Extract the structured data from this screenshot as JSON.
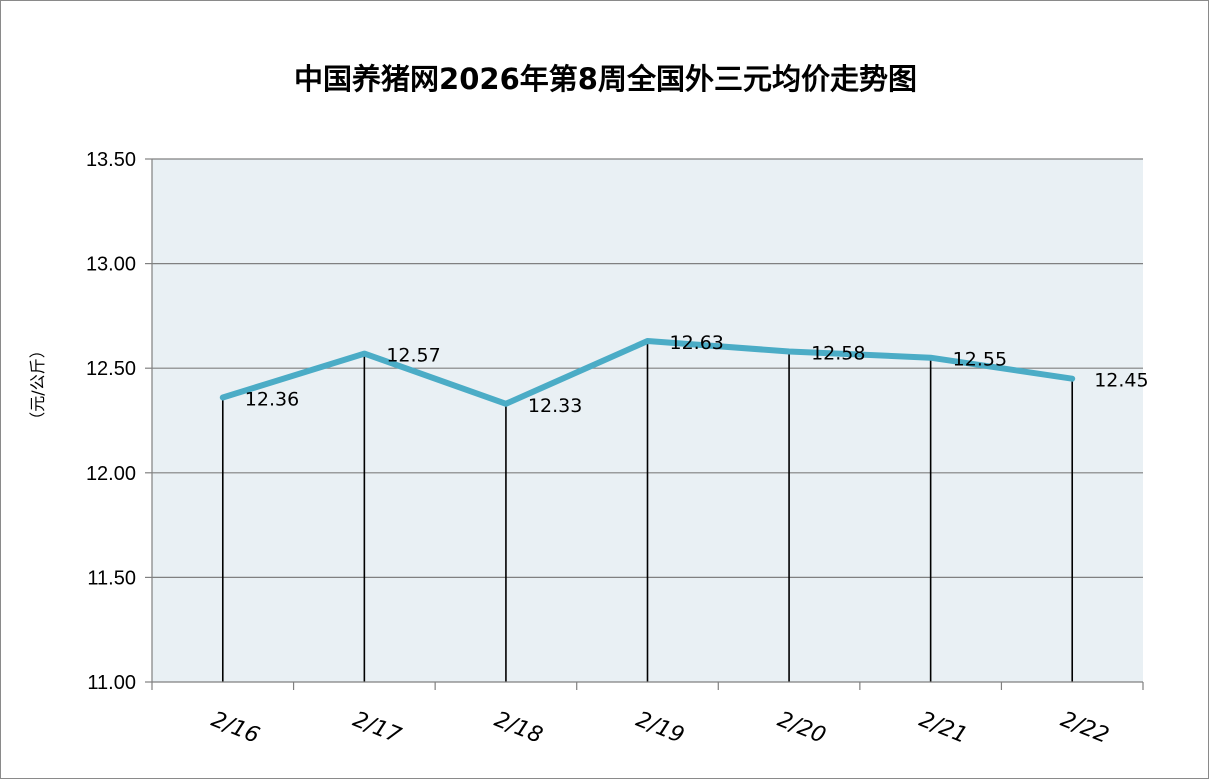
{
  "chart_data": {
    "type": "line",
    "title": "中国养猪网2026年第8周全国外三元均价走势图",
    "ylabel": "（元/公斤）",
    "xlabel": "",
    "categories": [
      "2/16",
      "2/17",
      "2/18",
      "2/19",
      "2/20",
      "2/21",
      "2/22"
    ],
    "values": [
      12.36,
      12.57,
      12.33,
      12.63,
      12.58,
      12.55,
      12.45
    ],
    "data_labels": [
      "12.36",
      "12.57",
      "12.33",
      "12.63",
      "12.58",
      "12.55",
      "12.45"
    ],
    "ylim": [
      11.0,
      13.5
    ],
    "yticks": [
      "11.00",
      "11.50",
      "12.00",
      "12.50",
      "13.00",
      "13.50"
    ],
    "grid": true,
    "drop_lines": true,
    "colors": {
      "line": "#4bacc6",
      "plot_bg": "#e9f0f4",
      "grid": "#808080"
    }
  }
}
